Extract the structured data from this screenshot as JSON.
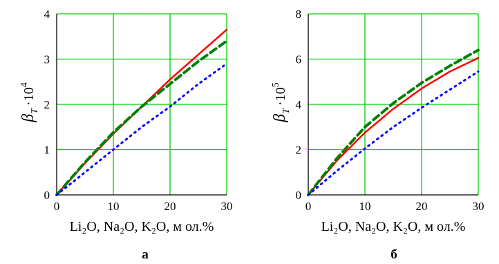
{
  "figure": {
    "colors": {
      "grid": "#00cc00",
      "axes": "#000000"
    },
    "ylabel_parts": {
      "main": "β",
      "sub": "T",
      "mult": "·10"
    }
  },
  "chart_data": [
    {
      "type": "line",
      "panel_label": "а",
      "xlabel": "Li₂O, Na₂O, K₂O, м ол.%",
      "ylabel": "β_T ·10^4",
      "ylabel_exp": "4",
      "xlim": [
        0,
        30
      ],
      "ylim": [
        0,
        4
      ],
      "x_ticks": [
        0,
        10,
        20,
        30
      ],
      "y_ticks": [
        0,
        1,
        2,
        3,
        4
      ],
      "grid": true,
      "series": [
        {
          "color": "#ff0000",
          "style": "solid",
          "x": [
            0,
            5,
            10,
            15,
            20,
            25,
            30
          ],
          "y": [
            0,
            0.7,
            1.35,
            1.95,
            2.55,
            3.1,
            3.65
          ]
        },
        {
          "color": "#008000",
          "style": "dashed",
          "x": [
            0,
            5,
            10,
            15,
            20,
            25,
            30
          ],
          "y": [
            0,
            0.72,
            1.38,
            1.95,
            2.45,
            2.95,
            3.4
          ]
        },
        {
          "color": "#0000ff",
          "style": "dotted",
          "x": [
            0,
            5,
            10,
            15,
            20,
            25,
            30
          ],
          "y": [
            0,
            0.5,
            1.0,
            1.5,
            1.95,
            2.45,
            2.9
          ]
        }
      ]
    },
    {
      "type": "line",
      "panel_label": "б",
      "xlabel": "Li₂O, Na₂O, K₂O, м ол.%",
      "ylabel": "β_T ·10^5",
      "ylabel_exp": "5",
      "xlim": [
        0,
        30
      ],
      "ylim": [
        0,
        8
      ],
      "x_ticks": [
        0,
        10,
        20,
        30
      ],
      "y_ticks": [
        0,
        2,
        4,
        6,
        8
      ],
      "grid": true,
      "series": [
        {
          "color": "#ff0000",
          "style": "solid",
          "x": [
            0,
            5,
            10,
            15,
            20,
            25,
            30
          ],
          "y": [
            0,
            1.5,
            2.75,
            3.8,
            4.7,
            5.45,
            6.05
          ]
        },
        {
          "color": "#008000",
          "style": "dashed",
          "x": [
            0,
            5,
            10,
            15,
            20,
            25,
            30
          ],
          "y": [
            0,
            1.6,
            3.0,
            4.05,
            4.95,
            5.7,
            6.4
          ]
        },
        {
          "color": "#0000ff",
          "style": "dotted",
          "x": [
            0,
            5,
            10,
            15,
            20,
            25,
            30
          ],
          "y": [
            0,
            1.05,
            2.05,
            3.0,
            3.85,
            4.65,
            5.45
          ]
        }
      ]
    }
  ]
}
